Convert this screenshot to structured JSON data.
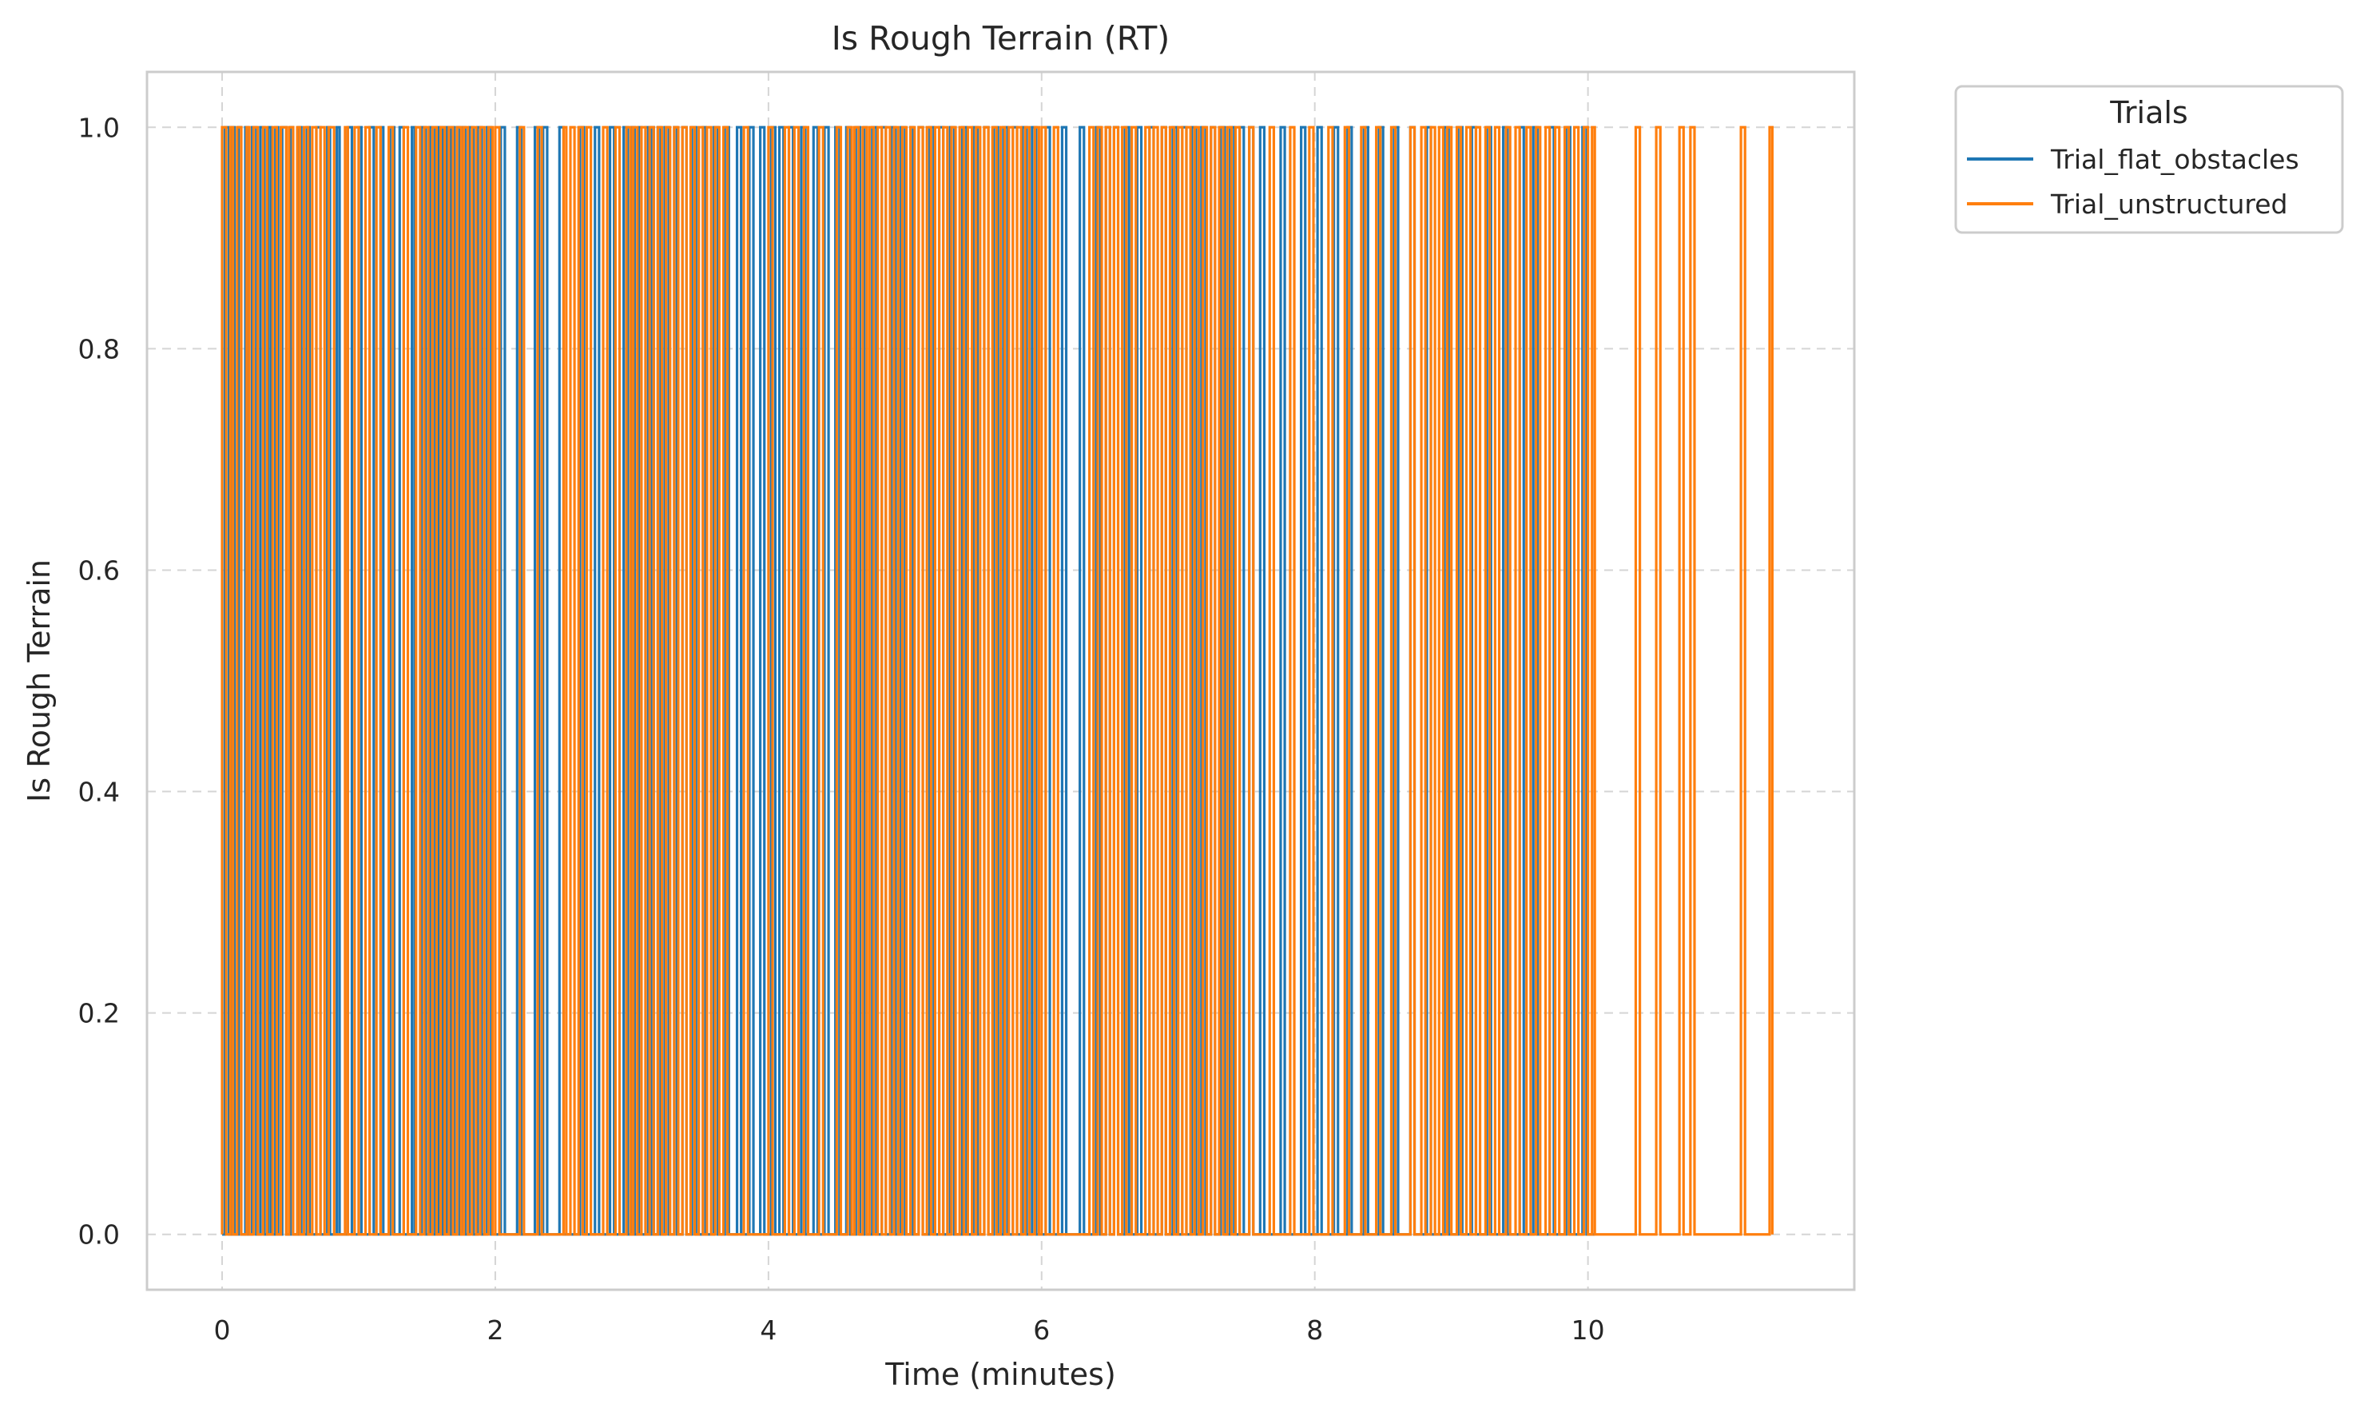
{
  "chart_data": {
    "type": "line",
    "title": "Is Rough Terrain (RT)",
    "xlabel": "Time (minutes)",
    "ylabel": "Is Rough Terrain",
    "xlim": [
      -0.55,
      11.95
    ],
    "ylim": [
      -0.05,
      1.05
    ],
    "xticks": [
      0,
      2,
      4,
      6,
      8,
      10
    ],
    "yticks": [
      0.0,
      0.2,
      0.4,
      0.6,
      0.8,
      1.0
    ],
    "xtick_labels": [
      "0",
      "2",
      "4",
      "6",
      "8",
      "10"
    ],
    "ytick_labels": [
      "0.0",
      "0.2",
      "0.4",
      "0.6",
      "0.8",
      "1.0"
    ],
    "grid": true,
    "grid_style": "dashed",
    "legend": {
      "title": "Trials",
      "placement": "outside upper right"
    },
    "series": [
      {
        "name": "Trial_flat_obstacles",
        "color": "#1f77b4",
        "draw_order": 1,
        "step_style": "post",
        "x_end": 10.05,
        "pulses": [
          [
            0.02,
            0.05
          ],
          [
            0.07,
            0.09
          ],
          [
            0.12,
            0.14
          ],
          [
            0.17,
            0.19
          ],
          [
            0.22,
            0.25
          ],
          [
            0.28,
            0.31
          ],
          [
            0.34,
            0.36
          ],
          [
            0.39,
            0.41
          ],
          [
            0.44,
            0.47
          ],
          [
            0.5,
            0.52
          ],
          [
            0.56,
            0.58
          ],
          [
            0.62,
            0.64
          ],
          [
            0.69,
            0.72
          ],
          [
            0.77,
            0.79
          ],
          [
            0.84,
            0.86
          ],
          [
            0.92,
            0.95
          ],
          [
            1.0,
            1.02
          ],
          [
            1.08,
            1.11
          ],
          [
            1.16,
            1.18
          ],
          [
            1.23,
            1.26
          ],
          [
            1.3,
            1.33
          ],
          [
            1.39,
            1.41
          ],
          [
            1.46,
            1.49
          ],
          [
            1.52,
            1.54
          ],
          [
            1.56,
            1.58
          ],
          [
            1.59,
            1.61
          ],
          [
            1.62,
            1.64
          ],
          [
            1.65,
            1.67
          ],
          [
            1.68,
            1.7
          ],
          [
            1.72,
            1.74
          ],
          [
            1.76,
            1.78
          ],
          [
            1.81,
            1.84
          ],
          [
            1.87,
            1.9
          ],
          [
            1.94,
            1.97
          ],
          [
            2.04,
            2.07
          ],
          [
            2.16,
            2.19
          ],
          [
            2.29,
            2.32
          ],
          [
            2.35,
            2.38
          ],
          [
            2.47,
            2.5
          ],
          [
            2.62,
            2.65
          ],
          [
            2.73,
            2.76
          ],
          [
            2.84,
            2.87
          ],
          [
            2.94,
            2.97
          ],
          [
            3.0,
            3.02
          ],
          [
            3.05,
            3.07
          ],
          [
            3.1,
            3.12
          ],
          [
            3.14,
            3.16
          ],
          [
            3.19,
            3.21
          ],
          [
            3.24,
            3.27
          ],
          [
            3.31,
            3.33
          ],
          [
            3.37,
            3.4
          ],
          [
            3.44,
            3.47
          ],
          [
            3.52,
            3.54
          ],
          [
            3.6,
            3.63
          ],
          [
            3.68,
            3.71
          ],
          [
            3.77,
            3.8
          ],
          [
            3.86,
            3.89
          ],
          [
            3.94,
            3.97
          ],
          [
            4.02,
            4.05
          ],
          [
            4.08,
            4.11
          ],
          [
            4.15,
            4.18
          ],
          [
            4.24,
            4.27
          ],
          [
            4.33,
            4.36
          ],
          [
            4.41,
            4.44
          ],
          [
            4.49,
            4.52
          ],
          [
            4.57,
            4.6
          ],
          [
            4.64,
            4.67
          ],
          [
            4.7,
            4.72
          ],
          [
            4.76,
            4.79
          ],
          [
            4.83,
            4.86
          ],
          [
            4.9,
            4.93
          ],
          [
            4.97,
            5.0
          ],
          [
            5.04,
            5.06
          ],
          [
            5.1,
            5.13
          ],
          [
            5.18,
            5.21
          ],
          [
            5.25,
            5.28
          ],
          [
            5.33,
            5.36
          ],
          [
            5.42,
            5.45
          ],
          [
            5.5,
            5.53
          ],
          [
            5.58,
            5.61
          ],
          [
            5.65,
            5.68
          ],
          [
            5.72,
            5.75
          ],
          [
            5.79,
            5.82
          ],
          [
            5.86,
            5.89
          ],
          [
            5.93,
            5.96
          ],
          [
            6.03,
            6.06
          ],
          [
            6.15,
            6.18
          ],
          [
            6.28,
            6.31
          ],
          [
            6.4,
            6.43
          ],
          [
            6.47,
            6.5
          ],
          [
            6.53,
            6.56
          ],
          [
            6.61,
            6.64
          ],
          [
            6.7,
            6.73
          ],
          [
            6.79,
            6.82
          ],
          [
            6.88,
            6.91
          ],
          [
            6.96,
            6.99
          ],
          [
            7.03,
            7.06
          ],
          [
            7.1,
            7.13
          ],
          [
            7.17,
            7.2
          ],
          [
            7.24,
            7.27
          ],
          [
            7.31,
            7.34
          ],
          [
            7.38,
            7.41
          ],
          [
            7.45,
            7.48
          ],
          [
            7.52,
            7.55
          ],
          [
            7.6,
            7.63
          ],
          [
            7.75,
            7.78
          ],
          [
            7.9,
            7.93
          ],
          [
            8.02,
            8.05
          ],
          [
            8.14,
            8.17
          ],
          [
            8.24,
            8.27
          ],
          [
            8.36,
            8.39
          ],
          [
            8.47,
            8.5
          ],
          [
            8.58,
            8.61
          ],
          [
            8.7,
            8.73
          ],
          [
            8.82,
            8.85
          ],
          [
            8.95,
            8.98
          ],
          [
            9.05,
            9.08
          ],
          [
            9.15,
            9.18
          ],
          [
            9.26,
            9.29
          ],
          [
            9.38,
            9.41
          ],
          [
            9.5,
            9.53
          ],
          [
            9.6,
            9.63
          ],
          [
            9.72,
            9.75
          ],
          [
            9.84,
            9.87
          ],
          [
            9.96,
            9.99
          ]
        ]
      },
      {
        "name": "Trial_unstructured",
        "color": "#ff7f0e",
        "draw_order": 2,
        "step_style": "post",
        "x_end": 11.35,
        "pulses": [
          [
            0.0,
            0.03
          ],
          [
            0.06,
            0.08
          ],
          [
            0.11,
            0.14
          ],
          [
            0.18,
            0.2
          ],
          [
            0.23,
            0.26
          ],
          [
            0.3,
            0.33
          ],
          [
            0.37,
            0.4
          ],
          [
            0.43,
            0.47
          ],
          [
            0.49,
            0.52
          ],
          [
            0.55,
            0.57
          ],
          [
            0.6,
            0.63
          ],
          [
            0.66,
            0.69
          ],
          [
            0.72,
            0.75
          ],
          [
            0.78,
            0.82
          ],
          [
            0.9,
            0.92
          ],
          [
            0.97,
            1.0
          ],
          [
            1.05,
            1.08
          ],
          [
            1.13,
            1.16
          ],
          [
            1.22,
            1.25
          ],
          [
            1.33,
            1.36
          ],
          [
            1.42,
            1.45
          ],
          [
            1.48,
            1.51
          ],
          [
            1.54,
            1.57
          ],
          [
            1.6,
            1.63
          ],
          [
            1.66,
            1.69
          ],
          [
            1.72,
            1.75
          ],
          [
            1.77,
            1.8
          ],
          [
            1.83,
            1.86
          ],
          [
            1.89,
            1.92
          ],
          [
            1.95,
            1.98
          ],
          [
            2.0,
            2.03
          ],
          [
            2.18,
            2.21
          ],
          [
            2.31,
            2.34
          ],
          [
            2.5,
            2.52
          ],
          [
            2.55,
            2.58
          ],
          [
            2.61,
            2.64
          ],
          [
            2.67,
            2.7
          ],
          [
            2.79,
            2.82
          ],
          [
            2.88,
            2.91
          ],
          [
            2.96,
            2.99
          ],
          [
            3.01,
            3.04
          ],
          [
            3.07,
            3.1
          ],
          [
            3.13,
            3.16
          ],
          [
            3.19,
            3.22
          ],
          [
            3.25,
            3.28
          ],
          [
            3.31,
            3.34
          ],
          [
            3.37,
            3.4
          ],
          [
            3.43,
            3.46
          ],
          [
            3.49,
            3.52
          ],
          [
            3.55,
            3.58
          ],
          [
            3.61,
            3.64
          ],
          [
            3.67,
            3.7
          ],
          [
            3.82,
            3.85
          ],
          [
            4.0,
            4.03
          ],
          [
            4.12,
            4.15
          ],
          [
            4.19,
            4.22
          ],
          [
            4.26,
            4.29
          ],
          [
            4.37,
            4.4
          ],
          [
            4.5,
            4.53
          ],
          [
            4.58,
            4.61
          ],
          [
            4.63,
            4.66
          ],
          [
            4.69,
            4.72
          ],
          [
            4.74,
            4.77
          ],
          [
            4.8,
            4.83
          ],
          [
            4.86,
            4.89
          ],
          [
            4.92,
            4.95
          ],
          [
            4.98,
            5.01
          ],
          [
            5.04,
            5.07
          ],
          [
            5.1,
            5.13
          ],
          [
            5.16,
            5.19
          ],
          [
            5.22,
            5.25
          ],
          [
            5.28,
            5.31
          ],
          [
            5.34,
            5.37
          ],
          [
            5.4,
            5.43
          ],
          [
            5.46,
            5.49
          ],
          [
            5.52,
            5.55
          ],
          [
            5.58,
            5.61
          ],
          [
            5.64,
            5.67
          ],
          [
            5.7,
            5.73
          ],
          [
            5.76,
            5.79
          ],
          [
            5.82,
            5.85
          ],
          [
            5.88,
            5.91
          ],
          [
            5.95,
            5.98
          ],
          [
            6.0,
            6.03
          ],
          [
            6.09,
            6.12
          ],
          [
            6.35,
            6.38
          ],
          [
            6.41,
            6.44
          ],
          [
            6.47,
            6.5
          ],
          [
            6.53,
            6.56
          ],
          [
            6.59,
            6.62
          ],
          [
            6.66,
            6.69
          ],
          [
            6.76,
            6.79
          ],
          [
            6.82,
            6.85
          ],
          [
            6.88,
            6.91
          ],
          [
            6.94,
            6.97
          ],
          [
            7.0,
            7.03
          ],
          [
            7.06,
            7.09
          ],
          [
            7.12,
            7.15
          ],
          [
            7.18,
            7.21
          ],
          [
            7.24,
            7.27
          ],
          [
            7.3,
            7.33
          ],
          [
            7.36,
            7.39
          ],
          [
            7.42,
            7.45
          ],
          [
            7.52,
            7.55
          ],
          [
            7.67,
            7.7
          ],
          [
            7.82,
            7.85
          ],
          [
            7.96,
            7.99
          ],
          [
            8.1,
            8.13
          ],
          [
            8.22,
            8.25
          ],
          [
            8.34,
            8.37
          ],
          [
            8.45,
            8.48
          ],
          [
            8.56,
            8.59
          ],
          [
            8.7,
            8.73
          ],
          [
            8.78,
            8.81
          ],
          [
            8.85,
            8.88
          ],
          [
            8.91,
            8.94
          ],
          [
            8.97,
            9.0
          ],
          [
            9.04,
            9.07
          ],
          [
            9.11,
            9.14
          ],
          [
            9.18,
            9.21
          ],
          [
            9.25,
            9.28
          ],
          [
            9.32,
            9.35
          ],
          [
            9.4,
            9.43
          ],
          [
            9.47,
            9.5
          ],
          [
            9.55,
            9.58
          ],
          [
            9.62,
            9.65
          ],
          [
            9.69,
            9.72
          ],
          [
            9.76,
            9.79
          ],
          [
            9.83,
            9.86
          ],
          [
            9.9,
            9.93
          ],
          [
            9.97,
            10.0
          ],
          [
            10.03,
            10.05
          ],
          [
            10.35,
            10.38
          ],
          [
            10.5,
            10.53
          ],
          [
            10.67,
            10.7
          ],
          [
            10.75,
            10.78
          ],
          [
            11.12,
            11.15
          ],
          [
            11.33,
            11.35
          ]
        ]
      }
    ]
  }
}
